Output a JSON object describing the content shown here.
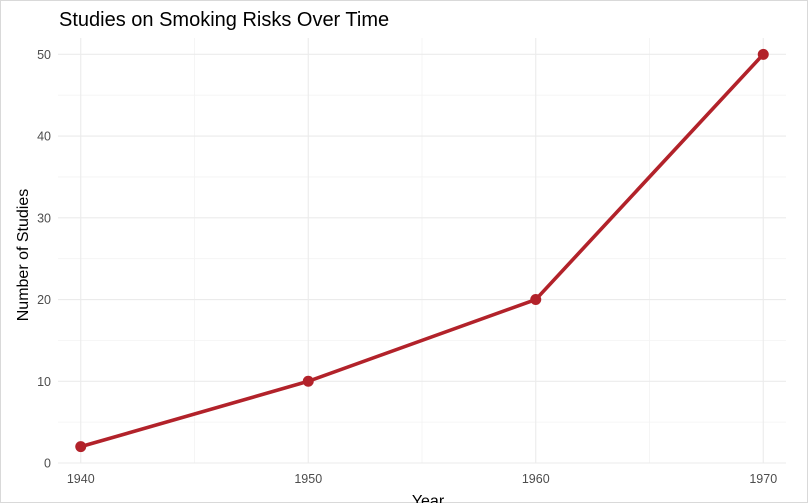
{
  "chart_data": {
    "type": "line",
    "title": "Studies on Smoking Risks Over Time",
    "xlabel": "Year",
    "ylabel": "Number of Studies",
    "x": [
      1940,
      1950,
      1960,
      1970
    ],
    "series": [
      {
        "values": [
          2,
          10,
          20,
          50
        ]
      }
    ],
    "xlim": [
      1939,
      1971
    ],
    "ylim": [
      0,
      52
    ],
    "xticks": [
      "1940",
      "1950",
      "1960",
      "1970"
    ],
    "yticks": [
      "0",
      "10",
      "20",
      "30",
      "40",
      "50"
    ],
    "grid": true,
    "legend": "none",
    "line_color": "#b2222a"
  }
}
